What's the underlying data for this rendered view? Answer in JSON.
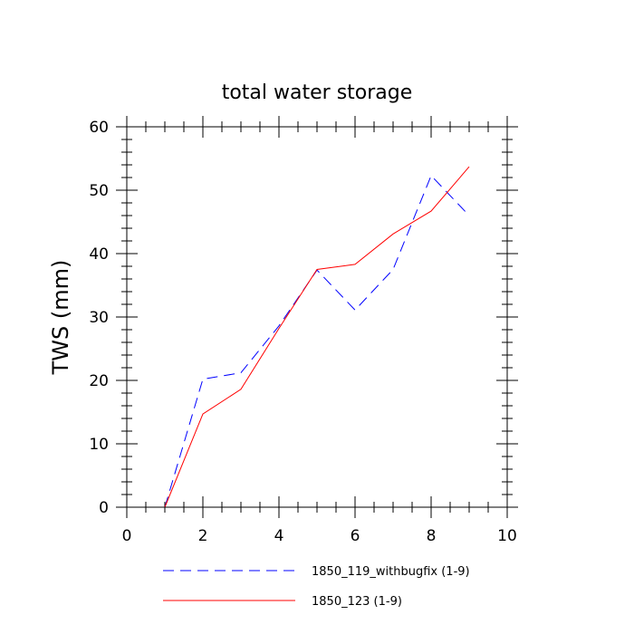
{
  "chart_data": {
    "type": "line",
    "title": "total water storage",
    "xlabel": "",
    "ylabel": "TWS  (mm)",
    "xlim": [
      0,
      10
    ],
    "ylim": [
      0,
      60
    ],
    "xticks": [
      0,
      2,
      4,
      6,
      8,
      10
    ],
    "yticks": [
      0,
      10,
      20,
      30,
      40,
      50,
      60
    ],
    "x": [
      1,
      2,
      3,
      4,
      5,
      6,
      7,
      8,
      9
    ],
    "series": [
      {
        "name": "1850_119_withbugfix (1-9)",
        "color": "#0000ff",
        "style": "dashed",
        "values": [
          0,
          20.2,
          21.2,
          28.6,
          37.4,
          31.1,
          37.5,
          52.3,
          46.0
        ]
      },
      {
        "name": "1850_123 (1-9)",
        "color": "#ff0000",
        "style": "solid",
        "values": [
          0,
          14.7,
          18.6,
          28.2,
          37.5,
          38.3,
          43.1,
          46.7,
          53.7
        ]
      }
    ],
    "grid": false,
    "legend_position": "bottom"
  }
}
